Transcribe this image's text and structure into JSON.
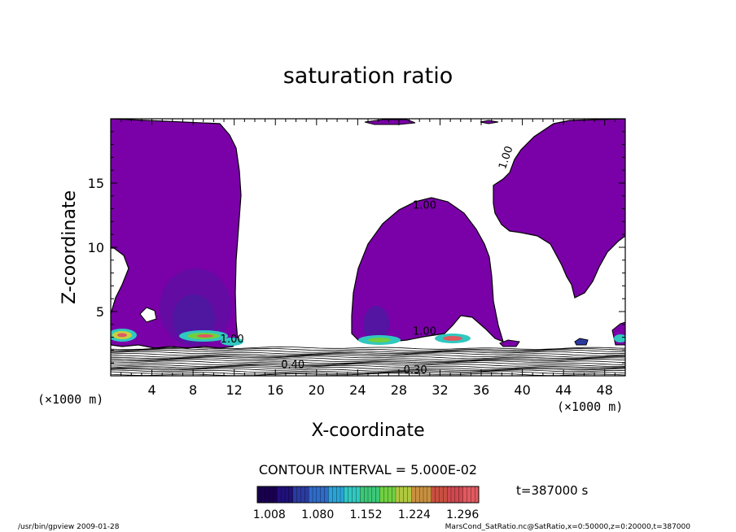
{
  "chart_data": {
    "type": "contour",
    "title": "saturation ratio",
    "xlabel": "X-coordinate",
    "ylabel": "Z-coordinate",
    "x_unit_left": "(×1000 m)",
    "x_unit_right": "(×1000 m)",
    "xlim": [
      0,
      50
    ],
    "ylim": [
      0,
      20
    ],
    "x_ticks": [
      4,
      8,
      12,
      16,
      20,
      24,
      28,
      32,
      36,
      40,
      44,
      48
    ],
    "y_ticks": [
      5,
      10,
      15
    ],
    "contour_interval_label": "CONTOUR INTERVAL = 5.000E-02",
    "time_label": "t=387000 s",
    "colorbar": {
      "tick_labels": [
        "1.008",
        "1.080",
        "1.152",
        "1.224",
        "1.296"
      ],
      "min": 0.99,
      "max": 1.32,
      "colors": [
        "#1a0050",
        "#20107a",
        "#2a3aa0",
        "#2f6bc8",
        "#2aa3d8",
        "#30c8c0",
        "#3cc878",
        "#70d040",
        "#b0c840",
        "#c89040",
        "#c85040",
        "#d04850",
        "#e05a60"
      ]
    },
    "contour_labels": [
      {
        "text": "1.00",
        "x": 30.5,
        "z": 13.0
      },
      {
        "text": "1.00",
        "x": 38.7,
        "z": 16.9
      },
      {
        "text": "1.00",
        "x": 30.5,
        "z": 3.2
      },
      {
        "text": "1.00",
        "x": 11.8,
        "z": 2.6
      },
      {
        "text": "0.40",
        "x": 17.7,
        "z": 0.6
      },
      {
        "text": "0.30",
        "x": 29.6,
        "z": 0.2
      }
    ],
    "supersaturated_region_level": 1.0
  },
  "footer": {
    "left": "/usr/bin/gpview  2009-01-28",
    "right": "MarsCond_SatRatio.nc@SatRatio,x=0:50000,z=0:20000,t=387000"
  },
  "colors": {
    "cloud_fill": "#7a00a8",
    "contour_line": "#000000"
  }
}
